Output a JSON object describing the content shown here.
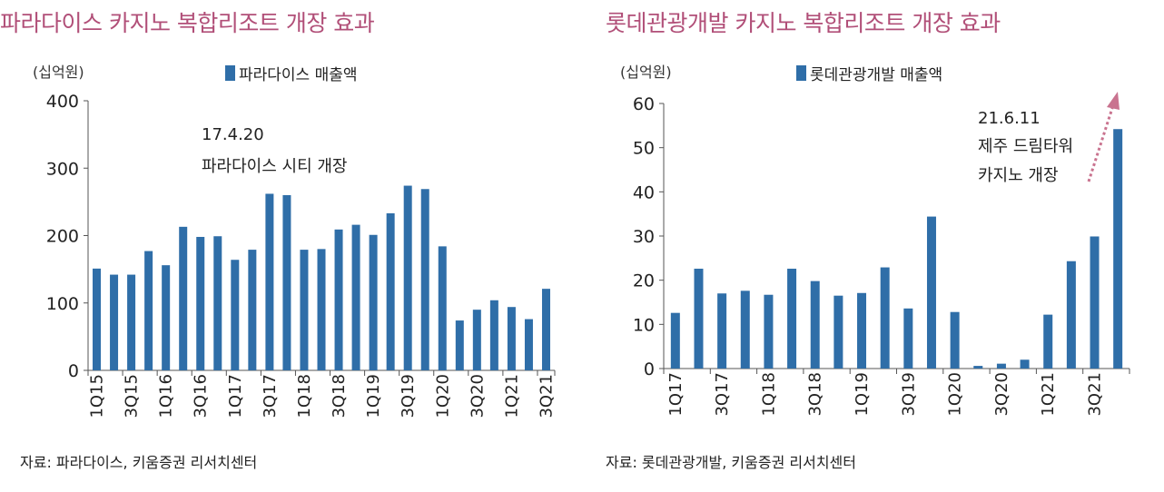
{
  "left": {
    "title": "파라다이스 카지노 복합리조트 개장 효과",
    "unit_label": "(십억원)",
    "legend_label": "파라다이스 매출액",
    "annotation": [
      "17.4.20",
      "파라다이스 시티 개장"
    ],
    "source": "자료: 파라다이스, 키움증권 리서치센터"
  },
  "right": {
    "title": "롯데관광개발 카지노 복합리조트 개장 효과",
    "unit_label": "(십억원)",
    "legend_label": "롯데관광개발 매출액",
    "annotation": [
      "21.6.11",
      "제주 드림타워",
      "카지노 개장"
    ],
    "source": "자료: 롯데관광개발, 키움증권 리서치센터"
  },
  "colors": {
    "bar": "#2f6ea8",
    "title": "#b14f78",
    "arrow": "#c9738f"
  },
  "chart_data": [
    {
      "type": "bar",
      "categories": [
        "1Q15",
        "2Q15",
        "3Q15",
        "4Q15",
        "1Q16",
        "2Q16",
        "3Q16",
        "4Q16",
        "1Q17",
        "2Q17",
        "3Q17",
        "4Q17",
        "1Q18",
        "2Q18",
        "3Q18",
        "4Q18",
        "1Q19",
        "2Q19",
        "3Q19",
        "4Q19",
        "1Q20",
        "2Q20",
        "3Q20",
        "4Q20",
        "1Q21",
        "2Q21",
        "3Q21"
      ],
      "tick_labels": [
        "1Q15",
        "3Q15",
        "1Q16",
        "3Q16",
        "1Q17",
        "3Q17",
        "1Q18",
        "3Q18",
        "1Q19",
        "3Q19",
        "1Q20",
        "3Q20",
        "1Q21",
        "3Q21"
      ],
      "series": [
        {
          "name": "파라다이스 매출액",
          "values": [
            151,
            142,
            142,
            177,
            156,
            213,
            198,
            199,
            164,
            179,
            262,
            260,
            179,
            180,
            209,
            216,
            201,
            233,
            274,
            269,
            184,
            74,
            90,
            104,
            94,
            76,
            121
          ]
        }
      ],
      "ylim": [
        0,
        400
      ],
      "yticks": [
        0,
        100,
        200,
        300,
        400
      ],
      "ylabel": "(십억원)"
    },
    {
      "type": "bar",
      "categories": [
        "1Q17",
        "2Q17",
        "3Q17",
        "4Q17",
        "1Q18",
        "2Q18",
        "3Q18",
        "4Q18",
        "1Q19",
        "2Q19",
        "3Q19",
        "4Q19",
        "1Q20",
        "2Q20",
        "3Q20",
        "4Q20",
        "1Q21",
        "2Q21",
        "3Q21",
        "4Q21"
      ],
      "tick_labels": [
        "1Q17",
        "3Q17",
        "1Q18",
        "3Q18",
        "1Q19",
        "3Q19",
        "1Q20",
        "3Q20",
        "1Q21",
        "3Q21"
      ],
      "series": [
        {
          "name": "롯데관광개발 매출액",
          "values": [
            12.6,
            22.6,
            17.0,
            17.6,
            16.7,
            22.6,
            19.8,
            16.5,
            17.1,
            22.9,
            13.6,
            34.4,
            12.8,
            0.6,
            1.1,
            2.0,
            12.2,
            24.3,
            29.9,
            54.2
          ]
        }
      ],
      "ylim": [
        0,
        60
      ],
      "yticks": [
        0,
        10,
        20,
        30,
        40,
        50,
        60
      ],
      "ylabel": "(십억원)"
    }
  ]
}
